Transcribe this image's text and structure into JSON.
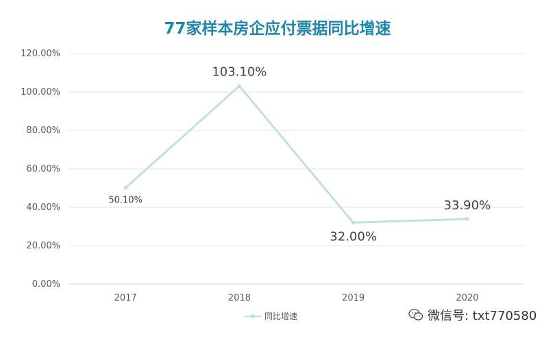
{
  "chart_data": {
    "type": "line",
    "title": "77家样本房企应付票据同比增速",
    "categories": [
      "2017",
      "2018",
      "2019",
      "2020"
    ],
    "series": [
      {
        "name": "同比增速",
        "values": [
          50.1,
          103.1,
          32.0,
          33.9
        ],
        "color": "#bfe1de"
      }
    ],
    "data_labels": [
      "50.10%",
      "103.10%",
      "32.00%",
      "33.90%"
    ],
    "y_ticks": [
      "0.00%",
      "20.00%",
      "40.00%",
      "60.00%",
      "80.00%",
      "100.00%",
      "120.00%"
    ],
    "ylim": [
      0,
      120
    ],
    "grid": true,
    "legend_position": "bottom",
    "title_color": "#1f86a8"
  },
  "watermark": {
    "text": "微信号: txt770580",
    "icon": "wechat-icon"
  }
}
